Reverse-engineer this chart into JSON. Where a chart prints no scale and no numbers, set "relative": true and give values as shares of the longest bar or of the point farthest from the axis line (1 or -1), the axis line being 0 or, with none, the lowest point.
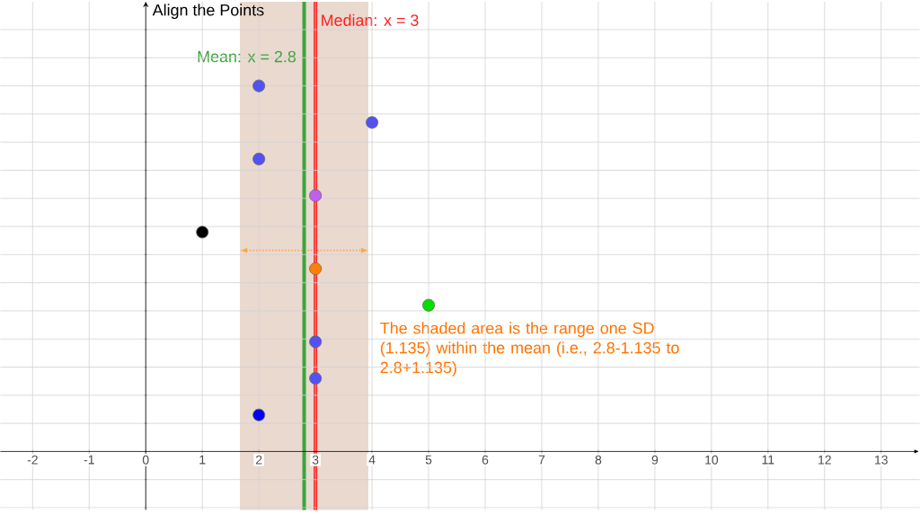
{
  "chart_data": {
    "type": "scatter",
    "relative": true,
    "xlim": [
      -2.57,
      13.68
    ],
    "xticks": [
      -2,
      -1,
      0,
      1,
      2,
      3,
      4,
      5,
      6,
      7,
      8,
      9,
      10,
      11,
      12,
      13
    ],
    "grid": true,
    "marker": "circle",
    "series": [
      {
        "x": [
          2,
          4,
          2,
          3,
          1,
          3,
          5,
          3,
          3,
          2
        ],
        "values": [
          1,
          0.9,
          0.8,
          0.7,
          0.6,
          0.5,
          0.4,
          0.3,
          0.2,
          0.1
        ],
        "colors": [
          "#5252f2",
          "#5252f2",
          "#5252f2",
          "#bf5ff0",
          "#000000",
          "#ff7f00",
          "#00e000",
          "#5252f2",
          "#5252f2",
          "#0000f0"
        ]
      }
    ],
    "ref_lines": [
      {
        "axis": "x",
        "value": 2.8,
        "label": "Mean: x = 2.8",
        "color": "#3aa63a"
      },
      {
        "axis": "x",
        "value": 3,
        "label": "Median: x = 3",
        "color": "#ff2020"
      }
    ],
    "bands": [
      {
        "axis": "x",
        "from": 1.665,
        "to": 3.935,
        "color": "#ead9cf"
      }
    ],
    "annotations": [
      "Align the Points",
      "The shaded area is the range one SD (1.135) within the mean (i.e., 2.8-1.135 to 2.8+1.135)"
    ]
  }
}
